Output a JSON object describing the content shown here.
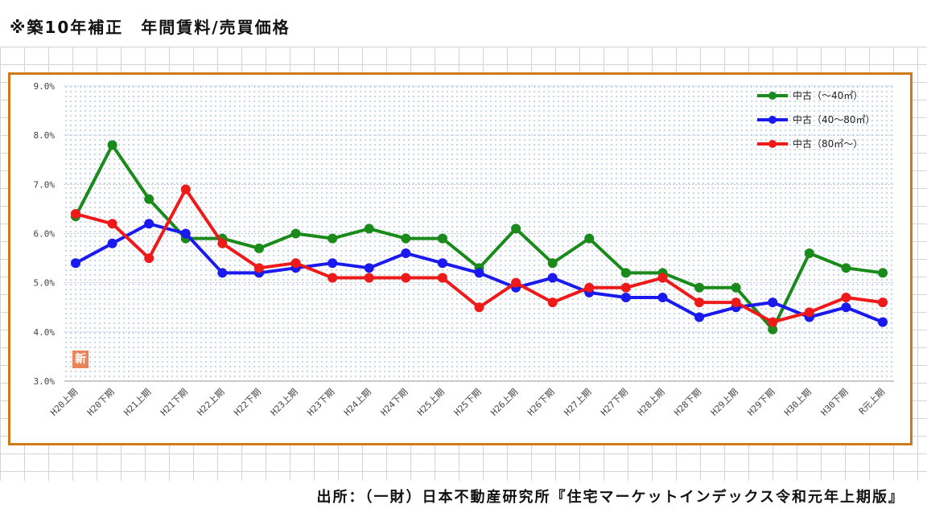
{
  "page_title": "※築10年補正　年間賃料/売買価格",
  "source_text": "出所：（一財）日本不動産研究所『住宅マーケットインデックス令和元年上期版』",
  "stamp_label": "新",
  "chart_data": {
    "type": "line",
    "title": "",
    "xlabel": "",
    "ylabel": "",
    "categories": [
      "H20上期",
      "H20下期",
      "H21上期",
      "H21下期",
      "H22上期",
      "H22下期",
      "H23上期",
      "H23下期",
      "H24上期",
      "H24下期",
      "H25上期",
      "H25下期",
      "H26上期",
      "H26下期",
      "H27上期",
      "H27下期",
      "H28上期",
      "H28下期",
      "H29上期",
      "H29下期",
      "H30上期",
      "H30下期",
      "R元上期"
    ],
    "ylim": [
      3.0,
      9.0
    ],
    "yticks": [
      3.0,
      4.0,
      5.0,
      6.0,
      7.0,
      8.0,
      9.0
    ],
    "ytick_labels": [
      "3.0%",
      "4.0%",
      "5.0%",
      "6.0%",
      "7.0%",
      "8.0%",
      "9.0%"
    ],
    "grid": true,
    "legend_position": "top-right",
    "series": [
      {
        "name": "中古（～40㎡）",
        "color": "#1a8a1a",
        "values": [
          6.35,
          7.8,
          6.7,
          5.9,
          5.9,
          5.7,
          6.0,
          5.9,
          6.1,
          5.9,
          5.9,
          5.3,
          6.1,
          5.4,
          5.9,
          5.2,
          5.2,
          4.9,
          4.9,
          4.05,
          5.6,
          5.3,
          5.2
        ]
      },
      {
        "name": "中古（40～80㎡）",
        "color": "#1a1aee",
        "values": [
          5.4,
          5.8,
          6.2,
          6.0,
          5.2,
          5.2,
          5.3,
          5.4,
          5.3,
          5.6,
          5.4,
          5.2,
          4.9,
          5.1,
          4.8,
          4.7,
          4.7,
          4.3,
          4.5,
          4.6,
          4.3,
          4.5,
          4.2
        ]
      },
      {
        "name": "中古（80㎡～）",
        "color": "#ee1a1a",
        "values": [
          6.4,
          6.2,
          5.5,
          6.9,
          5.8,
          5.3,
          5.4,
          5.1,
          5.1,
          5.1,
          5.1,
          4.5,
          5.0,
          4.6,
          4.9,
          4.9,
          5.1,
          4.6,
          4.6,
          4.2,
          4.4,
          4.7,
          4.6
        ]
      }
    ]
  }
}
